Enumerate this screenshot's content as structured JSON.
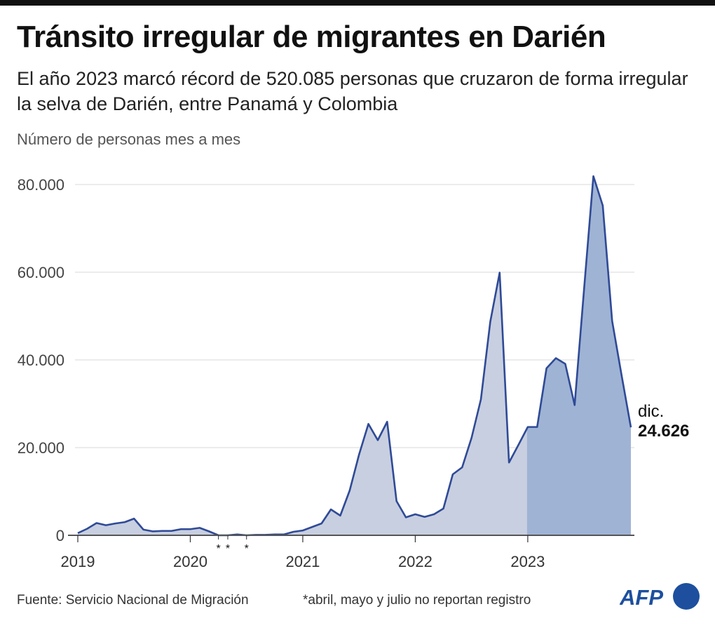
{
  "title": "Tránsito irregular de migrantes en Darién",
  "subtitle": "El año 2023 marcó récord de 520.085 personas que cruzaron de forma irregular la selva de Darién, entre Panamá y Colombia",
  "footer": {
    "source": "Fuente: Servicio Nacional de Migración",
    "note": "*abril, mayo y julio no reportan registro",
    "logo": "AFP"
  },
  "colors": {
    "line": "#2f4a96",
    "fill_before_2023": "#c8cfe0",
    "fill_2023": "#9fb3d4",
    "grid": "#d9d9d9"
  },
  "chart_data": {
    "type": "area",
    "title": "Tránsito irregular de migrantes en Darién",
    "ylabel": "Número de personas mes a mes",
    "ylim": [
      0,
      80000
    ],
    "yticks": [
      {
        "v": 0,
        "label": "0"
      },
      {
        "v": 20000,
        "label": "20.000"
      },
      {
        "v": 40000,
        "label": "40.000"
      },
      {
        "v": 60000,
        "label": "60.000"
      },
      {
        "v": 80000,
        "label": "80.000"
      }
    ],
    "xticks": [
      "2019",
      "2020",
      "2021",
      "2022",
      "2023"
    ],
    "grid": true,
    "x_start": "2019-01",
    "x_end": "2023-12",
    "values": [
      500,
      1500,
      2800,
      2300,
      2700,
      3000,
      3800,
      1300,
      900,
      1000,
      1000,
      1400,
      1400,
      1700,
      900,
      0,
      0,
      200,
      0,
      100,
      100,
      200,
      200,
      800,
      1100,
      1900,
      2700,
      5900,
      4500,
      10200,
      18400,
      25400,
      21700,
      25900,
      7800,
      4100,
      4800,
      4200,
      4800,
      6100,
      13900,
      15500,
      22200,
      31000,
      48700,
      59900,
      16600,
      20600,
      24700,
      24700,
      38100,
      40400,
      39100,
      29700,
      56000,
      81900,
      75200,
      48900,
      36600,
      24626
    ],
    "no_record_months": [
      "2020-04",
      "2020-05",
      "2020-07"
    ],
    "no_record_marker": "*",
    "highlight_from": "2023-01",
    "annotation": {
      "month": "dic.",
      "value": "24.626"
    }
  }
}
